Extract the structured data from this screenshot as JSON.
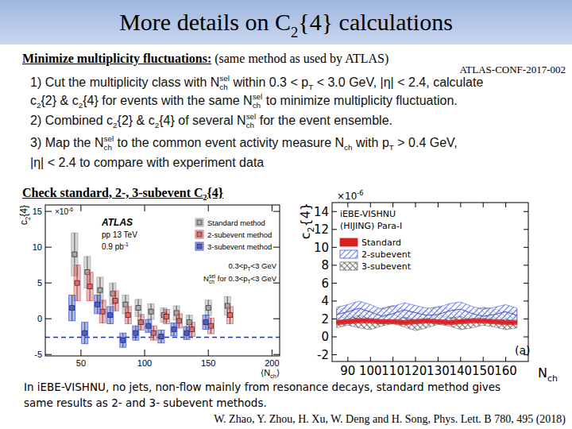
{
  "slide": {
    "title": [
      {
        "text": "More details on C",
        "sub": "2"
      },
      {
        "text": "{4} calculations"
      }
    ],
    "section1": {
      "heading": "Minimize multiplicity fluctuations:",
      "note": "(same method as used by ATLAS)",
      "reference": "ATLAS-CONF-2017-002"
    },
    "steps": [
      [
        {
          "text": "1) Cut the multiplicity class with N",
          "sub": "ch",
          "sup": "sel"
        },
        {
          "text": " within 0.3 < p",
          "sub": "T"
        },
        {
          "text": " < 3.0 GeV, |η| < 2.4, calculate"
        }
      ],
      [
        {
          "text": "c",
          "sub": "2"
        },
        {
          "text": "{2} & c",
          "sub": "2"
        },
        {
          "text": "{4} for events with the same N",
          "sub": "ch",
          "sup": "sel"
        },
        {
          "text": " to minimize multiplicity fluctuation."
        }
      ],
      [
        {
          "text": "2) Combined c",
          "sub": "2"
        },
        {
          "text": "{2} & c",
          "sub": "2"
        },
        {
          "text": "{4} of several N",
          "sub": "ch",
          "sup": "sel"
        },
        {
          "text": " for the event ensemble."
        }
      ],
      [
        {
          "text": "3) Map the N",
          "sub": "ch",
          "sup": "sel"
        },
        {
          "text": " to the common event activity measure N",
          "sub": "ch"
        },
        {
          "text": " with p",
          "sub": "T"
        },
        {
          "text": " > 0.4 GeV,"
        }
      ],
      [
        {
          "text": "|η| < 2.4 to compare with experiment data"
        }
      ]
    ],
    "section2": {
      "heading": [
        {
          "text": "Check standard, 2-, 3-subevent C",
          "sub": "2"
        },
        {
          "text": "{4}"
        }
      ]
    },
    "caption": [
      "In iEBE-VISHNU, no jets, non-flow mainly from resonance decays, standard method gives",
      "same results as 2- and 3- subevent methods."
    ],
    "citation": "W. Zhao, Y. Zhou, H. Xu, W. Deng and H. Song, Phys. Lett. B 780, 495 (2018)"
  },
  "chart_data": [
    {
      "type": "scatter",
      "ylabel": [
        {
          "text": "c",
          "sub": "2"
        },
        {
          "text": "{4}"
        }
      ],
      "xlabel": [
        {
          "text": "⟨N",
          "sub": "ch"
        },
        {
          "text": "⟩"
        }
      ],
      "y_multiplier": [
        {
          "text": "×10",
          "sup": "-6"
        }
      ],
      "xlim": [
        22,
        206
      ],
      "ylim": [
        -5.2,
        15.9
      ],
      "xticks": [
        50,
        100,
        150,
        200
      ],
      "yticks": [
        -5,
        0,
        5,
        10,
        15
      ],
      "grid": false,
      "legend": "upper right",
      "reference_y": -2.6,
      "annotations": [
        [
          {
            "text": "ATLAS"
          }
        ],
        [
          {
            "text": "pp 13 TeV"
          }
        ],
        [
          {
            "text": "0.9 pb",
            "sup": "-1"
          }
        ],
        [
          {
            "text": "0.3<p",
            "sub": "T"
          },
          {
            "text": "<3 GeV"
          }
        ],
        [
          {
            "text": "N",
            "sub": "ch",
            "sup": "sel"
          },
          {
            "text": " for 0.3<p",
            "sub": "T"
          },
          {
            "text": "<3 GeV"
          }
        ]
      ],
      "series": [
        {
          "name": "Standard method",
          "color": "#a9a9a9",
          "marker": "square",
          "x": [
            45,
            55,
            65,
            75,
            85,
            95,
            105,
            115,
            125,
            135,
            150,
            165
          ],
          "values": [
            9.0,
            6.5,
            4.0,
            3.5,
            2.0,
            1.5,
            1.0,
            0.5,
            0.8,
            -0.5,
            1.5,
            1.8
          ],
          "errors": [
            3.0,
            2.2,
            1.8,
            1.5,
            1.3,
            1.2,
            1.1,
            1.0,
            1.0,
            1.0,
            1.1,
            1.3
          ]
        },
        {
          "name": "2-subevent method",
          "color": "#e8686a",
          "marker": "square",
          "x": [
            47,
            57,
            67,
            77,
            87,
            97,
            107,
            117,
            127,
            137,
            152,
            167
          ],
          "values": [
            5.0,
            4.5,
            1.0,
            2.5,
            0.5,
            -0.5,
            -2.0,
            0.3,
            -0.3,
            -1.5,
            -1.0,
            0.5
          ],
          "errors": [
            2.5,
            2.0,
            1.6,
            1.4,
            1.2,
            1.1,
            1.0,
            1.0,
            1.0,
            1.0,
            1.1,
            1.2
          ]
        },
        {
          "name": "3-subevent method",
          "color": "#4a5fd6",
          "marker": "square",
          "x": [
            43,
            53,
            63,
            73,
            83,
            93,
            103,
            113,
            123,
            133,
            148
          ],
          "values": [
            1.5,
            -2.0,
            2.0,
            0.5,
            -3.0,
            -2.0,
            -1.0,
            -2.5,
            -1.5,
            -2.0,
            -0.5
          ],
          "errors": [
            1.8,
            1.5,
            1.3,
            1.2,
            1.0,
            1.0,
            0.9,
            0.9,
            0.9,
            0.9,
            1.0
          ]
        }
      ]
    },
    {
      "type": "band",
      "ylabel": [
        {
          "text": "c",
          "sub": "2"
        },
        {
          "text": "{4}"
        }
      ],
      "xlabel": [
        {
          "text": "N",
          "sub": "ch"
        }
      ],
      "y_multiplier": [
        {
          "text": "×10",
          "sup": "-6"
        }
      ],
      "xlim": [
        83,
        170
      ],
      "ylim": [
        -2.75,
        15
      ],
      "xticks": [
        90,
        100,
        110,
        120,
        130,
        140,
        150,
        160
      ],
      "yticks": [
        -2,
        0,
        2,
        4,
        6,
        8,
        10,
        12,
        14
      ],
      "grid": false,
      "legend": "upper left",
      "annotations": [
        [
          {
            "text": "iEBE-VISHNU"
          }
        ],
        [
          {
            "text": "(HIJING) Para-I"
          }
        ],
        [
          {
            "text": "(a)"
          }
        ]
      ],
      "series": [
        {
          "name": "Standard",
          "color": "#d91f1f",
          "x": [
            85,
            90,
            95,
            100,
            105,
            110,
            115,
            120,
            125,
            130,
            135,
            140,
            145,
            150,
            155,
            160,
            165
          ],
          "values": [
            1.6,
            1.7,
            1.8,
            1.8,
            1.7,
            1.7,
            1.6,
            1.7,
            1.8,
            1.7,
            1.6,
            1.7,
            1.8,
            1.8,
            1.7,
            1.6,
            1.6
          ],
          "errors": [
            0.25,
            0.25,
            0.25,
            0.25,
            0.25,
            0.25,
            0.25,
            0.25,
            0.25,
            0.25,
            0.25,
            0.25,
            0.25,
            0.25,
            0.25,
            0.25,
            0.25
          ]
        },
        {
          "name": "2-subevent",
          "color": "#3b55e6",
          "x": [
            85,
            90,
            95,
            100,
            105,
            110,
            115,
            120,
            125,
            130,
            135,
            140,
            145,
            150,
            155,
            160,
            165
          ],
          "values": [
            2.5,
            2.8,
            3.2,
            2.8,
            2.3,
            2.6,
            3.0,
            2.7,
            2.4,
            2.5,
            2.9,
            3.1,
            2.6,
            2.3,
            2.5,
            2.8,
            2.4
          ],
          "errors": [
            0.8,
            0.8,
            0.8,
            0.8,
            0.8,
            0.8,
            0.8,
            0.8,
            0.8,
            0.8,
            0.8,
            0.8,
            0.8,
            0.8,
            0.8,
            0.8,
            0.8
          ]
        },
        {
          "name": "3-subevent",
          "color": "#6f6f6f",
          "x": [
            85,
            90,
            95,
            100,
            105,
            110,
            115,
            120,
            125,
            130,
            135,
            140,
            145,
            150,
            155,
            160,
            165
          ],
          "values": [
            2.0,
            2.3,
            2.0,
            1.8,
            2.2,
            2.5,
            2.1,
            1.7,
            2.0,
            2.4,
            2.2,
            1.8,
            2.0,
            2.3,
            2.1,
            1.8,
            2.0
          ],
          "errors": [
            1.0,
            1.0,
            1.0,
            1.0,
            1.0,
            1.0,
            1.0,
            1.0,
            1.0,
            1.0,
            1.0,
            1.0,
            1.0,
            1.0,
            1.0,
            1.0,
            1.0
          ]
        }
      ]
    }
  ]
}
